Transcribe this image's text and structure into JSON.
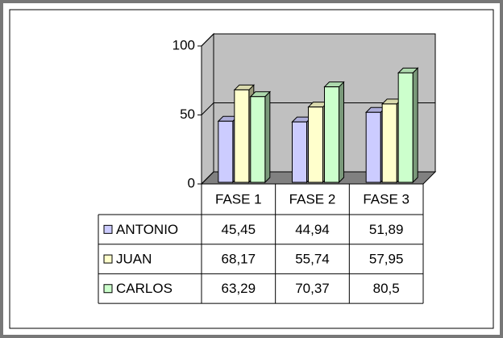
{
  "chart_data": {
    "type": "bar3d",
    "categories": [
      "FASE 1",
      "FASE 2",
      "FASE 3"
    ],
    "series": [
      {
        "name": "ANTONIO",
        "color": "#ccccff",
        "values": [
          45.45,
          44.94,
          51.89
        ],
        "value_labels": [
          "45,45",
          "44,94",
          "51,89"
        ]
      },
      {
        "name": "JUAN",
        "color": "#ffffcc",
        "values": [
          68.17,
          55.74,
          57.95
        ],
        "value_labels": [
          "68,17",
          "55,74",
          "57,95"
        ]
      },
      {
        "name": "CARLOS",
        "color": "#ccffcc",
        "values": [
          63.29,
          70.37,
          80.5
        ],
        "value_labels": [
          "63,29",
          "70,37",
          "80,5"
        ]
      }
    ],
    "ylim": [
      0,
      100
    ],
    "yticks": [
      0,
      50,
      100
    ],
    "grid": true
  }
}
